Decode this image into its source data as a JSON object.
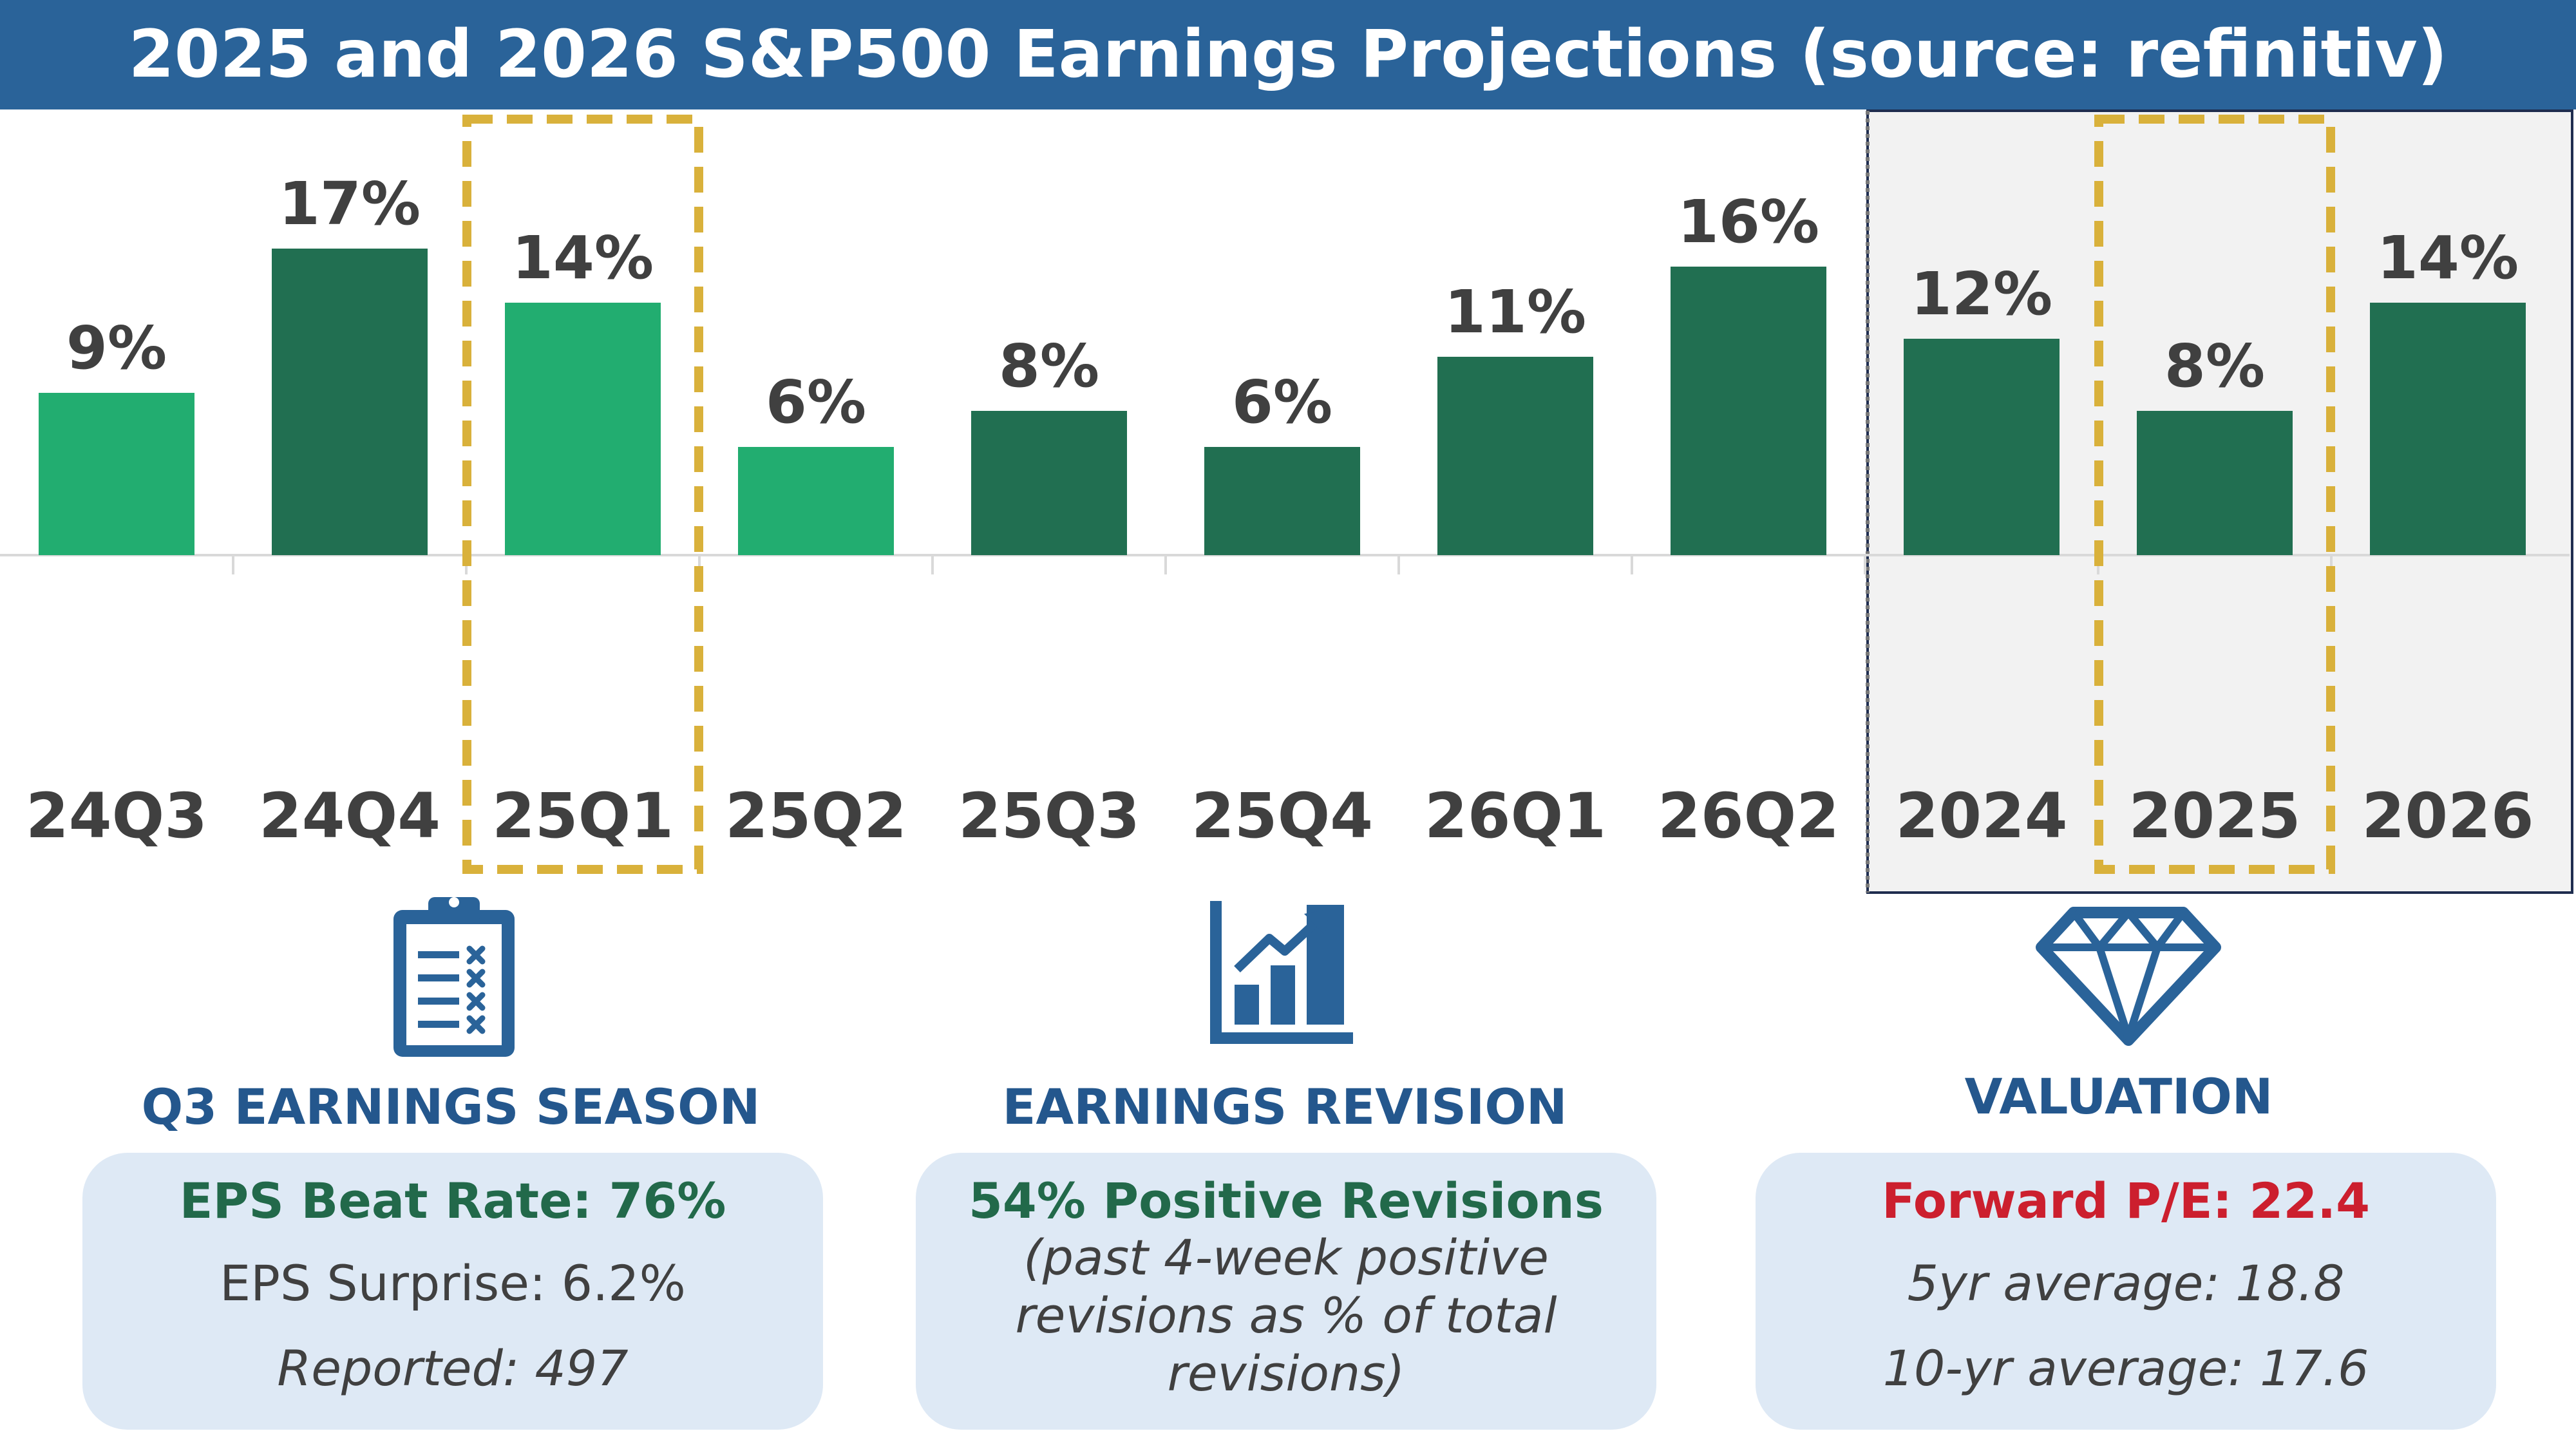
{
  "title": "2025 and 2026 S&P500 Earnings Projections (source: refinitiv)",
  "colors": {
    "title_bg": "#2a6399",
    "bar_light": "#22ad70",
    "bar_dark": "#216f51",
    "highlight_dash": "#d9b13b",
    "label_gray": "#404040",
    "section_blue": "#24578d",
    "card_bg": "#dee9f5",
    "valuation_red": "#cc1f2e"
  },
  "chart_data": {
    "type": "bar",
    "title": "2025 and 2026 S&P500 Earnings Projections (source: refinitiv)",
    "categories": [
      "24Q3",
      "24Q4",
      "25Q1",
      "25Q2",
      "25Q3",
      "25Q4",
      "26Q1",
      "26Q2",
      "2024",
      "2025",
      "2026"
    ],
    "values": [
      9,
      17,
      14,
      6,
      8,
      6,
      11,
      16,
      12,
      8,
      14
    ],
    "labels": [
      "9%",
      "17%",
      "14%",
      "6%",
      "8%",
      "6%",
      "11%",
      "16%",
      "12%",
      "8%",
      "14%"
    ],
    "shade": [
      "light",
      "dark",
      "light",
      "light",
      "dark",
      "dark",
      "dark",
      "dark",
      "dark",
      "dark",
      "dark"
    ],
    "highlighted": [
      "25Q1",
      "2025"
    ],
    "annual_group": [
      "2024",
      "2025",
      "2026"
    ],
    "unit": "%",
    "ylim": [
      0,
      20
    ],
    "grid": false,
    "legend": "none"
  },
  "sections": [
    {
      "icon": "clipboard-checklist-icon",
      "title": "Q3 EARNINGS SEASON",
      "headline": "EPS Beat Rate: 76%",
      "lines": [
        "EPS Surprise: 6.2%",
        "Reported: 497"
      ]
    },
    {
      "icon": "growth-bar-chart-icon",
      "title": "EARNINGS REVISION",
      "headline": "54% Positive Revisions",
      "lines": [
        "(past 4-week positive",
        "revisions as % of total",
        "revisions)"
      ]
    },
    {
      "icon": "diamond-icon",
      "title": "VALUATION",
      "headline": "Forward P/E: 22.4",
      "lines": [
        "5yr average: 18.8",
        "10-yr average: 17.6"
      ]
    }
  ]
}
